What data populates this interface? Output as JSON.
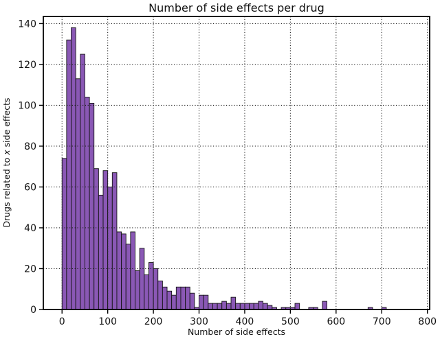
{
  "figure": {
    "background_color": "#ffffff",
    "frame_color": "#000000",
    "grid_style": "dotted",
    "grid_color": "#222222"
  },
  "chart_data": {
    "type": "bar",
    "subtype": "histogram",
    "title": "Number of side effects per drug",
    "xlabel": "Number of side effects",
    "ylabel": "Drugs related to x side effects",
    "ylabel_parts": {
      "pre": "Drugs related to ",
      "italic": "x",
      "post": " side effects"
    },
    "bin_start": 0,
    "bin_width": 10,
    "values": [
      74,
      132,
      138,
      113,
      125,
      104,
      101,
      69,
      56,
      68,
      60,
      67,
      38,
      37,
      32,
      38,
      19,
      30,
      17,
      23,
      20,
      14,
      11,
      9,
      7,
      11,
      11,
      11,
      8,
      1,
      7,
      7,
      3,
      3,
      3,
      4,
      3,
      6,
      3,
      3,
      3,
      3,
      3,
      4,
      3,
      2,
      1,
      0,
      1,
      1,
      1,
      3,
      0,
      0,
      1,
      1,
      0,
      4,
      0,
      0,
      0,
      0,
      0,
      0,
      0,
      0,
      0,
      1,
      0,
      0,
      1,
      0,
      0,
      0,
      0,
      0,
      0,
      0,
      0,
      0
    ],
    "x_ticks": [
      0,
      100,
      200,
      300,
      400,
      500,
      600,
      700,
      800
    ],
    "y_ticks": [
      0,
      20,
      40,
      60,
      80,
      100,
      120,
      140
    ],
    "xlim": [
      -41,
      805
    ],
    "ylim": [
      0,
      143.5
    ],
    "grid": "on",
    "legend": "none",
    "bar_color": "#8a58b5",
    "bar_edge_color": "#141414"
  }
}
